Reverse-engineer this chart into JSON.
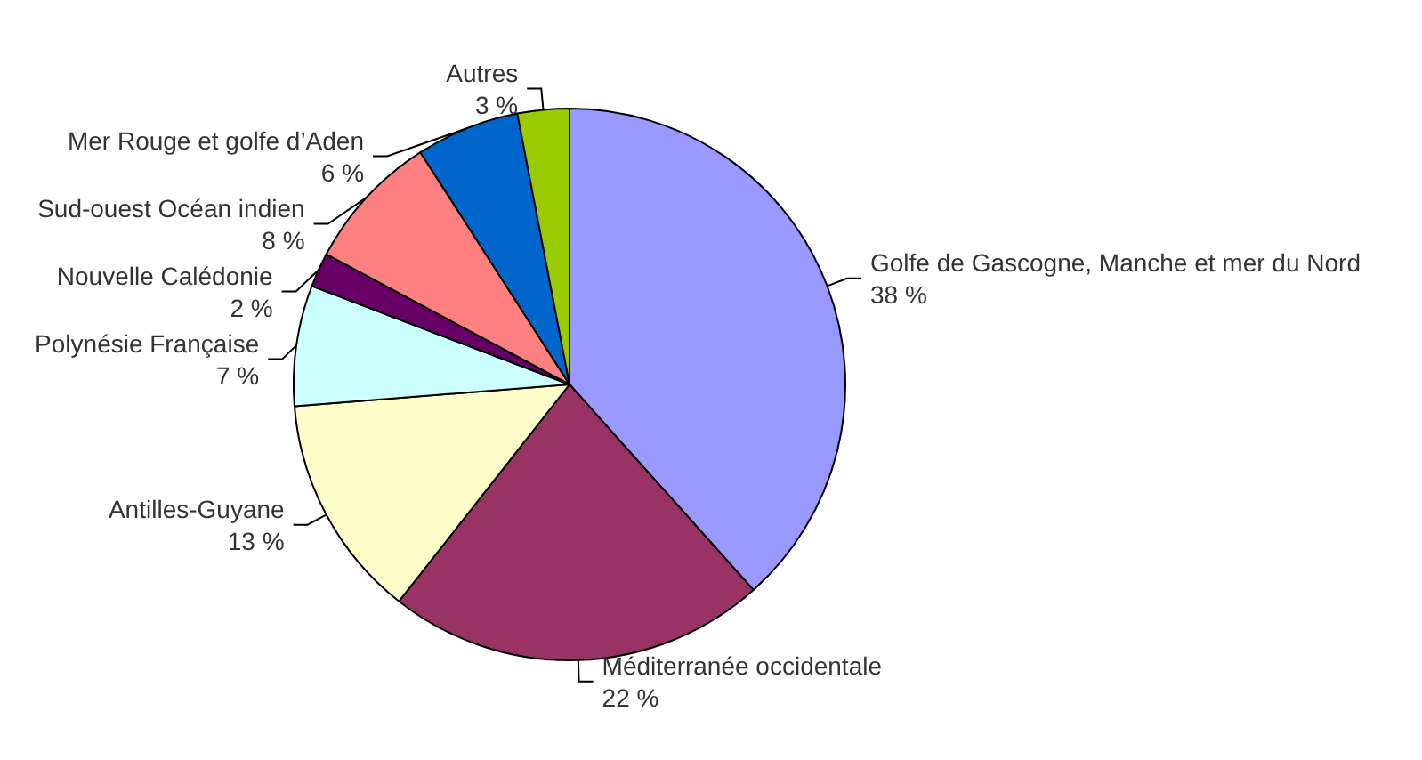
{
  "chart_data": {
    "type": "pie",
    "categories": [
      "Golfe de Gascogne, Manche et mer du Nord",
      "Méditerranée occidentale",
      "Antilles-Guyane",
      "Polynésie Française",
      "Nouvelle Calédonie",
      "Sud-ouest Océan indien",
      "Mer Rouge et golfe d’Aden",
      "Autres"
    ],
    "values": [
      38,
      22,
      13,
      7,
      2,
      8,
      6,
      3
    ],
    "value_labels": [
      "38 %",
      "22 %",
      "13 %",
      "7 %",
      "2 %",
      "8 %",
      "6 %",
      "3 %"
    ],
    "colors": [
      "#9999ff",
      "#993366",
      "#ffffcc",
      "#ccffff",
      "#660066",
      "#ff8080",
      "#0066cc",
      "#99cc00"
    ],
    "legend": false
  }
}
